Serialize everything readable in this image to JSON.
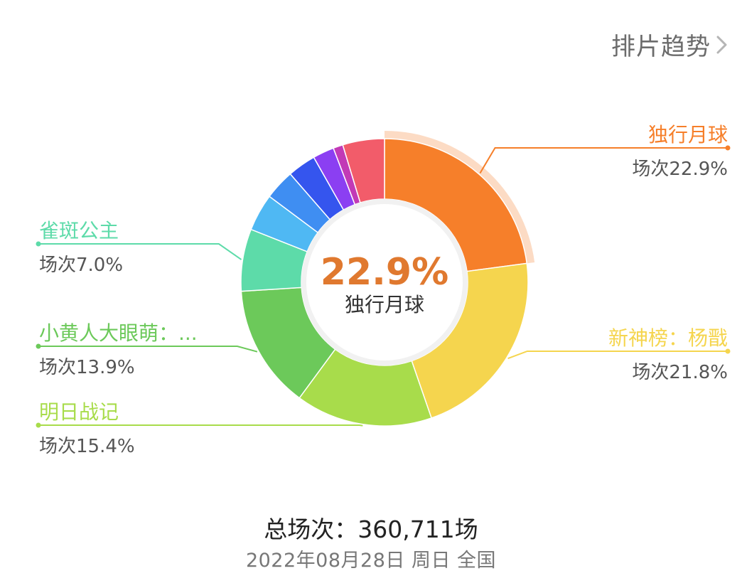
{
  "header": {
    "link_label": "排片趋势"
  },
  "chart_data": {
    "type": "pie",
    "variant": "donut",
    "highlighted_index": 0,
    "center": {
      "value_text": "22.9%",
      "label": "独行月球"
    },
    "value_prefix": "场次",
    "slices": [
      {
        "name": "独行月球",
        "value": 22.9,
        "color": "#f67f2a",
        "label_side": "right",
        "show_label": true
      },
      {
        "name": "新神榜：杨戬",
        "value": 21.8,
        "color": "#f5d54e",
        "label_side": "right",
        "show_label": true
      },
      {
        "name": "明日战记",
        "value": 15.4,
        "color": "#a8dc4b",
        "label_side": "left",
        "show_label": true
      },
      {
        "name": "小黄人大眼萌：...",
        "value": 13.9,
        "color": "#6cc95a",
        "label_side": "left",
        "show_label": true
      },
      {
        "name": "雀斑公主",
        "value": 7.0,
        "color": "#5ddba9",
        "label_side": "left",
        "show_label": true
      },
      {
        "name": "",
        "value": 4.2,
        "color": "#4fb8f3",
        "show_label": false
      },
      {
        "name": "",
        "value": 3.4,
        "color": "#3f8ef2",
        "show_label": false
      },
      {
        "name": "",
        "value": 3.2,
        "color": "#3555ee",
        "show_label": false
      },
      {
        "name": "",
        "value": 2.4,
        "color": "#8b3ff2",
        "show_label": false
      },
      {
        "name": "",
        "value": 1.1,
        "color": "#c23ab6",
        "show_label": false
      },
      {
        "name": "",
        "value": 4.7,
        "color": "#f25c6a",
        "show_label": false
      }
    ]
  },
  "footer": {
    "total_text": "总场次：360,711场",
    "date_text": "2022年08月28日 周日 全国"
  }
}
